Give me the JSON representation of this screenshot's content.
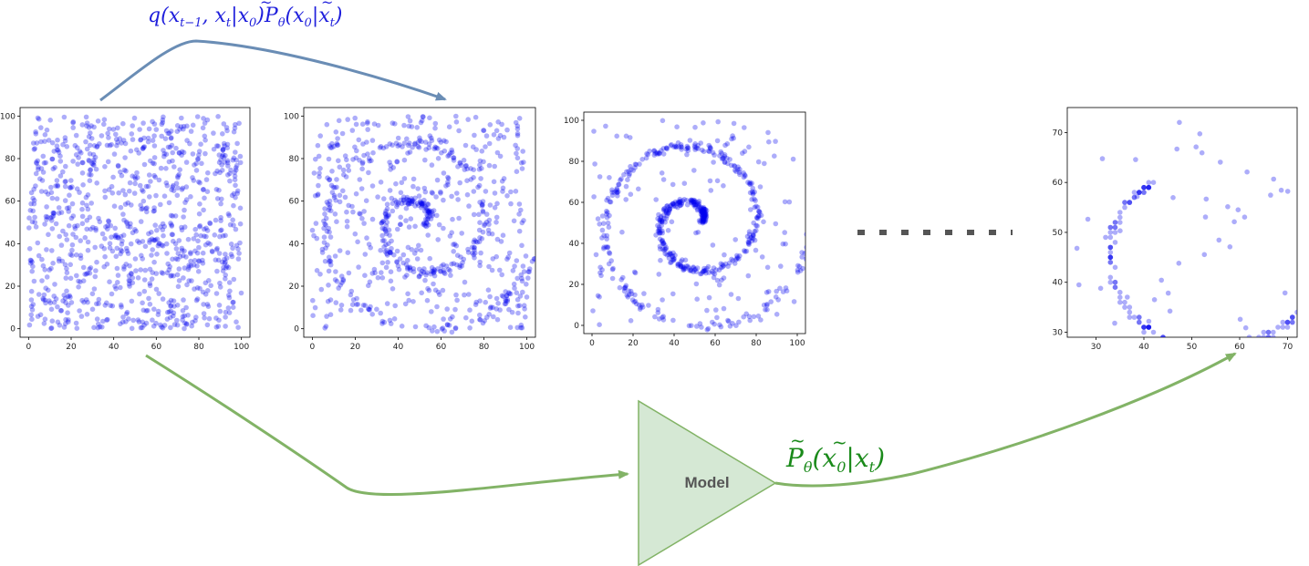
{
  "colors": {
    "blue_formula": "#1f1fdc",
    "green_formula": "#1a8a1a",
    "top_arrow": "#6a8db5",
    "green_arrow": "#82b366",
    "model_fill": "#d5e8d4",
    "model_stroke": "#82b366",
    "point": "#0000ee",
    "dots": "#555555"
  },
  "top_formula": {
    "q": "q",
    "lp": "(",
    "x": "x",
    "sub_tm1": "t−1",
    "comma": ", ",
    "x2": "x",
    "sub_t": "t",
    "bar": "|",
    "x0": "x",
    "sub_0": "0",
    "rp": ")",
    "P": "P",
    "sub_theta": "θ",
    "lp2": "(",
    "x0b": "x",
    "sub_0b": "0",
    "bar2": "|",
    "x3": "x",
    "sub_t2": "t",
    "rp2": ")"
  },
  "bottom_formula": {
    "P": "P",
    "sub_theta": "θ",
    "lp": "(",
    "x0": "x",
    "sub_0": "0",
    "bar": "|",
    "x": "x",
    "sub_t": "t",
    "rp": ")"
  },
  "model": {
    "label": "Model"
  },
  "plots": [
    {
      "id": "plot-1",
      "stage": "noise",
      "x_ticks": [
        "0",
        "20",
        "40",
        "60",
        "80",
        "100"
      ],
      "y_ticks": [
        "0",
        "20",
        "40",
        "60",
        "80",
        "100"
      ]
    },
    {
      "id": "plot-2",
      "stage": "partial",
      "x_ticks": [
        "0",
        "20",
        "40",
        "60",
        "80",
        "100"
      ],
      "y_ticks": [
        "0",
        "20",
        "40",
        "60",
        "80",
        "100"
      ]
    },
    {
      "id": "plot-3",
      "stage": "mostly",
      "x_ticks": [
        "0",
        "20",
        "40",
        "60",
        "80",
        "100"
      ],
      "y_ticks": [
        "0",
        "20",
        "40",
        "60",
        "80",
        "100"
      ]
    },
    {
      "id": "plot-4",
      "stage": "final",
      "x_ticks": [
        "30",
        "40",
        "50",
        "60",
        "70"
      ],
      "y_ticks": [
        "30",
        "40",
        "50",
        "60",
        "70"
      ]
    }
  ]
}
